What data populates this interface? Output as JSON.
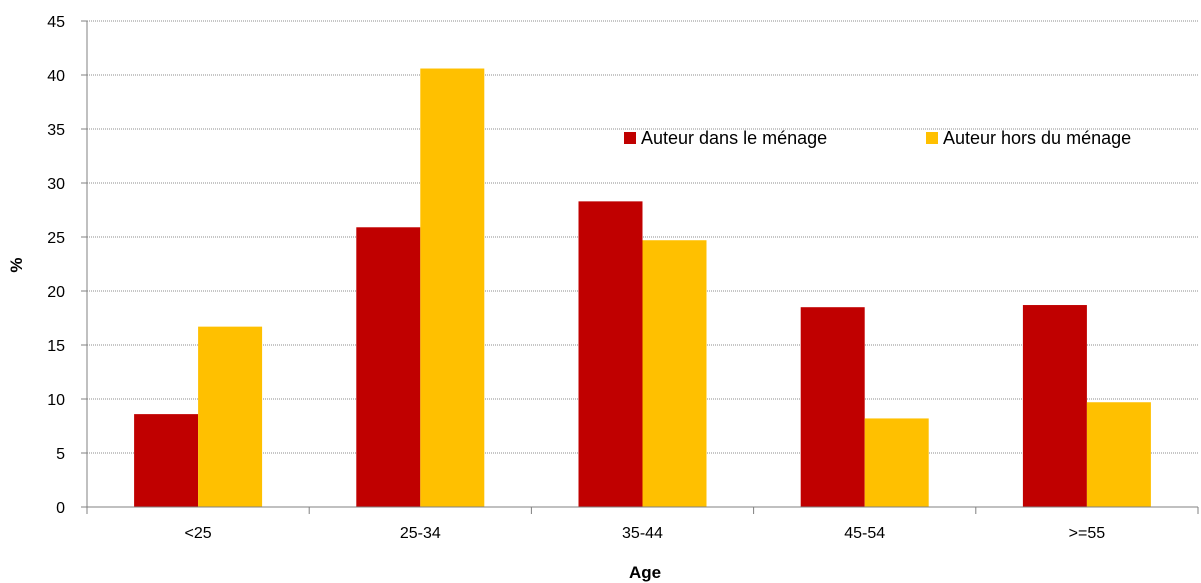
{
  "chart_data": {
    "type": "bar",
    "title": "",
    "xlabel": "Age",
    "ylabel": "%",
    "categories": [
      "<25",
      "25-34",
      "35-44",
      "45-54",
      ">=55"
    ],
    "series": [
      {
        "name": "Auteur dans le ménage",
        "color": "#c00000",
        "values": [
          8.6,
          25.9,
          28.3,
          18.5,
          18.7
        ]
      },
      {
        "name": "Auteur hors du ménage",
        "color": "#ffc000",
        "values": [
          16.7,
          40.6,
          24.7,
          8.2,
          9.7
        ]
      }
    ],
    "ylim": [
      0,
      45
    ],
    "yticks": [
      "0",
      "5",
      "10",
      "15",
      "20",
      "25",
      "30",
      "35",
      "40",
      "45"
    ],
    "grid": true,
    "legend_position": "top-right"
  }
}
